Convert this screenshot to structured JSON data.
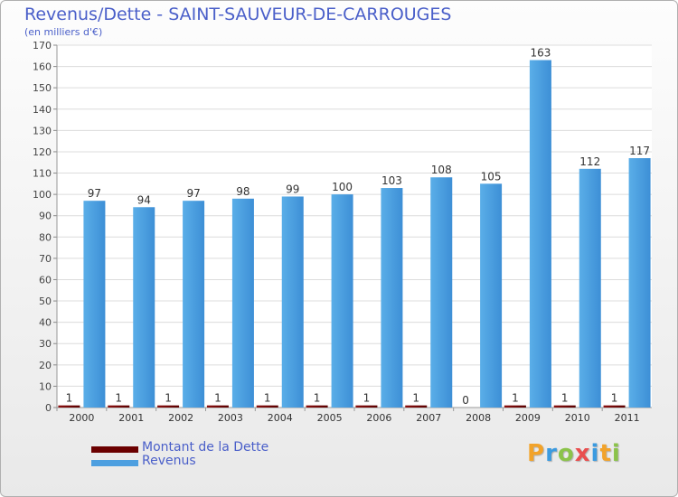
{
  "chart_data": {
    "type": "bar",
    "title": "Revenus/Dette - SAINT-SAUVEUR-DE-CARROUGES",
    "subtitle": "(en milliers d'€)",
    "categories": [
      "2000",
      "2001",
      "2002",
      "2003",
      "2004",
      "2005",
      "2006",
      "2007",
      "2008",
      "2009",
      "2010",
      "2011"
    ],
    "series": [
      {
        "name": "Montant de la Dette",
        "color": "#6b0000",
        "values": [
          1,
          1,
          1,
          1,
          1,
          1,
          1,
          1,
          0,
          1,
          1,
          1
        ]
      },
      {
        "name": "Revenus",
        "color": "#4d9fe0",
        "values": [
          97,
          94,
          97,
          98,
          99,
          100,
          103,
          108,
          105,
          163,
          112,
          117
        ]
      }
    ],
    "ylim": [
      0,
      170
    ],
    "yticks": [
      0,
      10,
      20,
      30,
      40,
      50,
      60,
      70,
      80,
      90,
      100,
      110,
      120,
      130,
      140,
      150,
      160,
      170
    ],
    "grid": true,
    "legend_position": "bottom-left"
  },
  "legend": {
    "items": [
      {
        "label": "Montant de la Dette",
        "color": "#6b0000"
      },
      {
        "label": "Revenus",
        "color": "#4d9fe0"
      }
    ]
  },
  "logo": {
    "letters": [
      "P",
      "r",
      "o",
      "x",
      "i",
      "t",
      "i"
    ],
    "colors": [
      "#f2a32a",
      "#3b9be0",
      "#8bc34a",
      "#e94e4e",
      "#3b9be0",
      "#f2a32a",
      "#8bc34a"
    ]
  }
}
